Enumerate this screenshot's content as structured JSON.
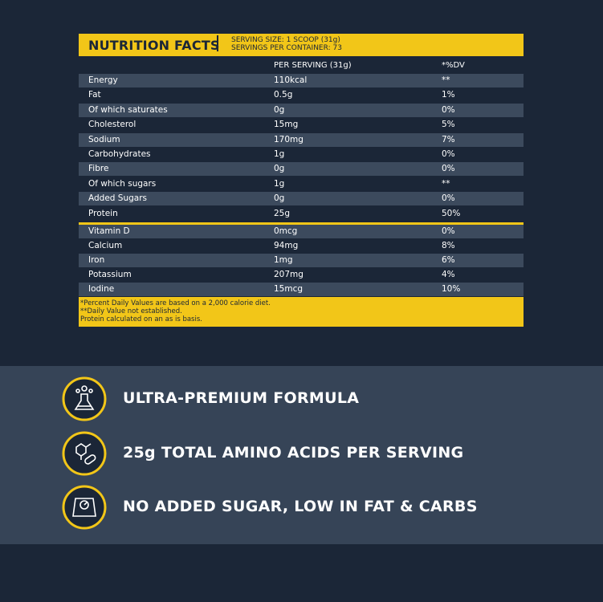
{
  "header": {
    "title": "NUTRITION FACTS",
    "serving_size": "SERVING SIZE: 1 SCOOP (31g)",
    "servings_per_container": "SERVINGS PER CONTAINER: 73"
  },
  "columns": [
    "PER SERVING (31g)",
    "*%DV"
  ],
  "rows": [
    [
      "Energy",
      "110kcal",
      "**"
    ],
    [
      "Fat",
      "0.5g",
      "1%"
    ],
    [
      "Of which saturates",
      "0g",
      "0%"
    ],
    [
      "Cholesterol",
      "15mg",
      "5%"
    ],
    [
      "Sodium",
      "170mg",
      "7%"
    ],
    [
      "Carbohydrates",
      "1g",
      "0%"
    ],
    [
      "Fibre",
      "0g",
      "0%"
    ],
    [
      "Of which sugars",
      "1g",
      "**"
    ],
    [
      "Added Sugars",
      "0g",
      "0%"
    ],
    [
      "Protein",
      "25g",
      "50%"
    ]
  ],
  "micronutrients": [
    [
      "Vitamin D",
      "0mcg",
      "0%"
    ],
    [
      "Calcium",
      "94mg",
      "8%"
    ],
    [
      "Iron",
      "1mg",
      "6%"
    ],
    [
      "Potassium",
      "207mg",
      "4%"
    ],
    [
      "Iodine",
      "15mcg",
      "10%"
    ]
  ],
  "footnotes": [
    "*Percent Daily Values are based on a 2,000 calorie diet.",
    "**Daily Value not established.",
    "Protein calculated on an as is basis."
  ],
  "features": [
    "ULTRA-PREMIUM FORMULA",
    "25g TOTAL AMINO ACIDS PER SERVING",
    "NO ADDED SUGAR, LOW IN FAT & CARBS"
  ]
}
